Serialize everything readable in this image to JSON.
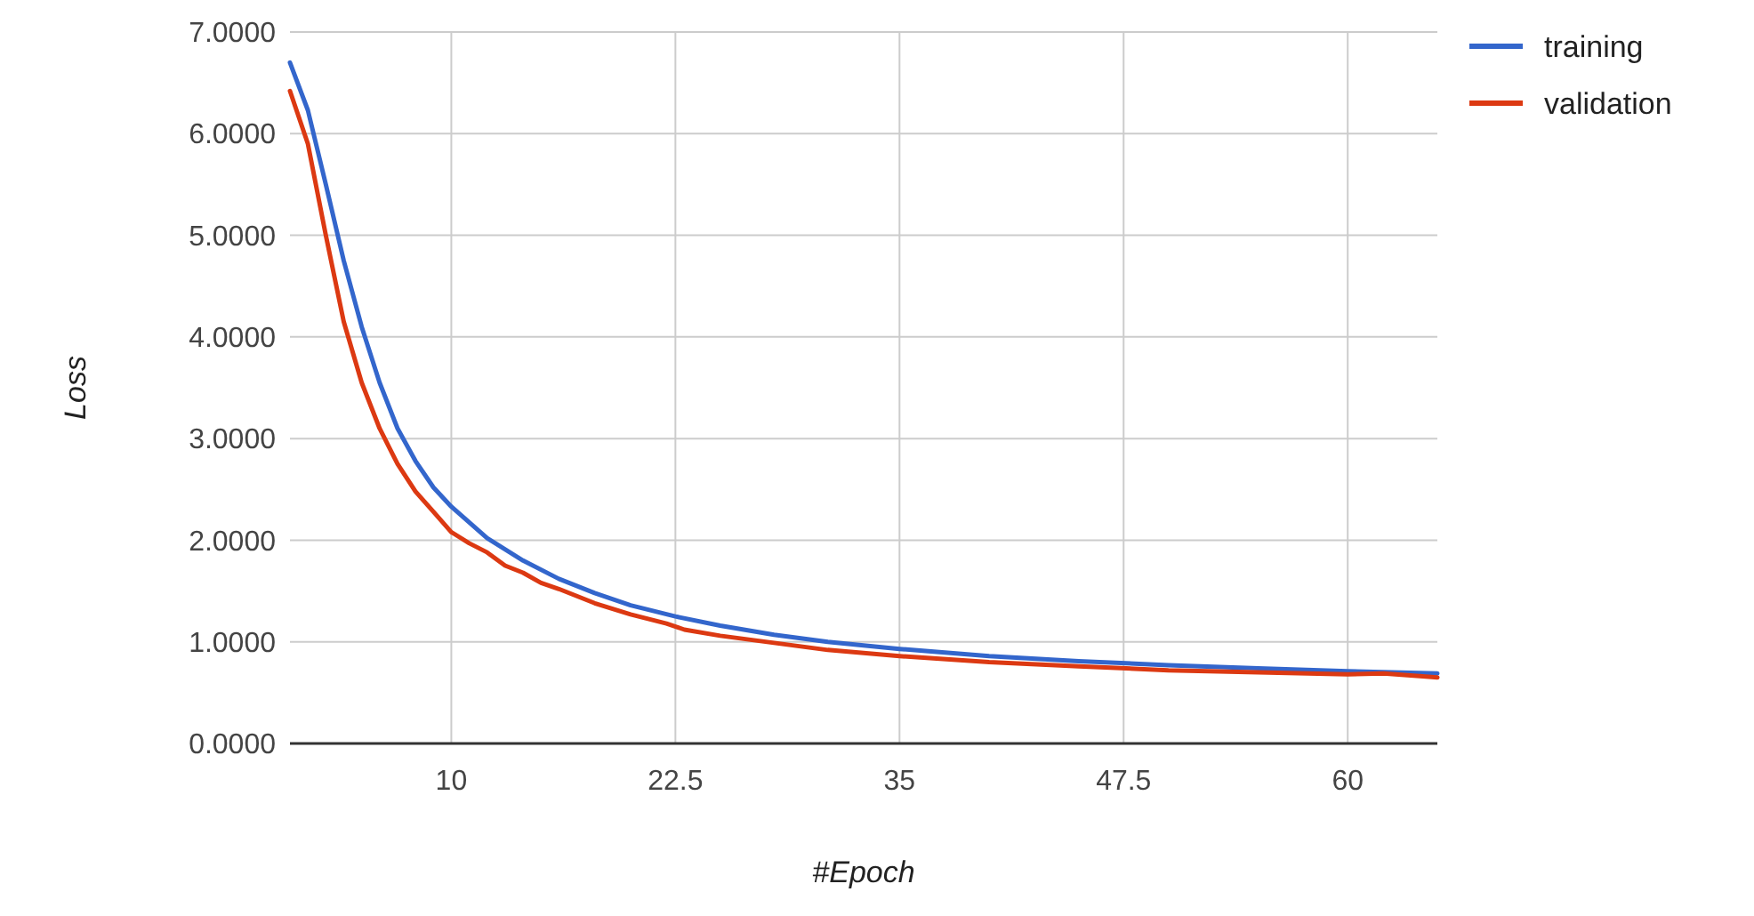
{
  "chart_data": {
    "type": "line",
    "xlabel": "#Epoch",
    "ylabel": "Loss",
    "xlim": [
      1,
      65
    ],
    "xticks": [
      10,
      22.5,
      35,
      47.5,
      60
    ],
    "ylim": [
      0,
      7
    ],
    "yticks": [
      {
        "value": 0,
        "label": "0.0000"
      },
      {
        "value": 1,
        "label": "1.0000"
      },
      {
        "value": 2,
        "label": "2.0000"
      },
      {
        "value": 3,
        "label": "3.0000"
      },
      {
        "value": 4,
        "label": "4.0000"
      },
      {
        "value": 5,
        "label": "5.0000"
      },
      {
        "value": 6,
        "label": "6.0000"
      },
      {
        "value": 7,
        "label": "7.0000"
      }
    ],
    "grid": true,
    "legend": "top right",
    "series": [
      {
        "name": "training",
        "color": "#3366cc",
        "x": [
          1,
          2,
          3,
          4,
          5,
          6,
          7,
          8,
          9,
          10,
          12,
          14,
          16,
          18,
          20,
          22.5,
          25,
          28,
          31,
          35,
          40,
          45,
          50,
          55,
          60,
          65
        ],
        "values": [
          6.7,
          6.23,
          5.5,
          4.75,
          4.1,
          3.55,
          3.1,
          2.78,
          2.52,
          2.33,
          2.02,
          1.8,
          1.62,
          1.48,
          1.36,
          1.25,
          1.16,
          1.07,
          1.0,
          0.93,
          0.86,
          0.81,
          0.77,
          0.74,
          0.71,
          0.69
        ]
      },
      {
        "name": "validation",
        "color": "#dc3912",
        "x": [
          1,
          2,
          3,
          4,
          5,
          6,
          7,
          8,
          9,
          10,
          11,
          12,
          13,
          14,
          15,
          16,
          18,
          20,
          22,
          23,
          25,
          28,
          31,
          35,
          40,
          45,
          50,
          55,
          60,
          62,
          65
        ],
        "values": [
          6.42,
          5.9,
          5.0,
          4.15,
          3.55,
          3.1,
          2.75,
          2.48,
          2.28,
          2.08,
          1.97,
          1.88,
          1.75,
          1.68,
          1.58,
          1.52,
          1.38,
          1.27,
          1.18,
          1.12,
          1.06,
          0.99,
          0.92,
          0.86,
          0.8,
          0.76,
          0.72,
          0.7,
          0.68,
          0.69,
          0.65
        ]
      }
    ]
  }
}
